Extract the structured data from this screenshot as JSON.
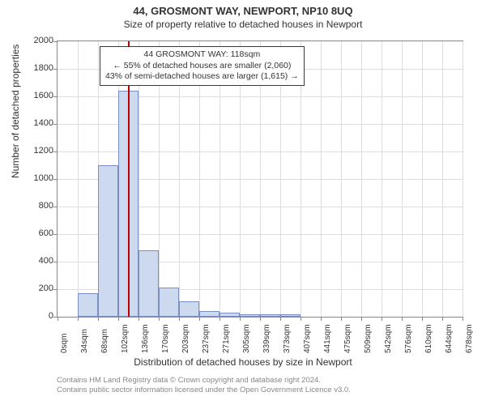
{
  "header": {
    "address": "44, GROSMONT WAY, NEWPORT, NP10 8UQ",
    "subtitle": "Size of property relative to detached houses in Newport"
  },
  "chart": {
    "type": "histogram",
    "ylabel": "Number of detached properties",
    "xlabel": "Distribution of detached houses by size in Newport",
    "ylim": [
      0,
      2000
    ],
    "yticks": [
      0,
      200,
      400,
      600,
      800,
      1000,
      1200,
      1400,
      1600,
      1800,
      2000
    ],
    "xticks": [
      "0sqm",
      "34sqm",
      "68sqm",
      "102sqm",
      "136sqm",
      "170sqm",
      "203sqm",
      "237sqm",
      "271sqm",
      "305sqm",
      "339sqm",
      "373sqm",
      "407sqm",
      "441sqm",
      "475sqm",
      "509sqm",
      "542sqm",
      "576sqm",
      "610sqm",
      "644sqm",
      "678sqm"
    ],
    "xmax": 678,
    "bins": [
      {
        "start": 34,
        "end": 68,
        "value": 170
      },
      {
        "start": 68,
        "end": 102,
        "value": 1100
      },
      {
        "start": 102,
        "end": 136,
        "value": 1640
      },
      {
        "start": 136,
        "end": 170,
        "value": 480
      },
      {
        "start": 170,
        "end": 203,
        "value": 210
      },
      {
        "start": 203,
        "end": 237,
        "value": 110
      },
      {
        "start": 237,
        "end": 271,
        "value": 40
      },
      {
        "start": 271,
        "end": 305,
        "value": 30
      },
      {
        "start": 305,
        "end": 339,
        "value": 20
      },
      {
        "start": 339,
        "end": 373,
        "value": 20
      },
      {
        "start": 373,
        "end": 407,
        "value": 20
      },
      {
        "start": 407,
        "end": 441,
        "value": 0
      },
      {
        "start": 441,
        "end": 475,
        "value": 0
      }
    ],
    "bar_fill": "#cdd9ef",
    "bar_stroke": "#7a8fc0",
    "grid_color": "#dddddd",
    "axis_color": "#888888",
    "bg_color": "#ffffff",
    "reference": {
      "value": 118,
      "color": "#c00000"
    },
    "infobox": {
      "line1": "44 GROSMONT WAY: 118sqm",
      "line2": "← 55% of detached houses are smaller (2,060)",
      "line3": "43% of semi-detached houses are larger (1,615) →"
    }
  },
  "credit": {
    "line1": "Contains HM Land Registry data © Crown copyright and database right 2024.",
    "line2": "Contains public sector information licensed under the Open Government Licence v3.0."
  }
}
